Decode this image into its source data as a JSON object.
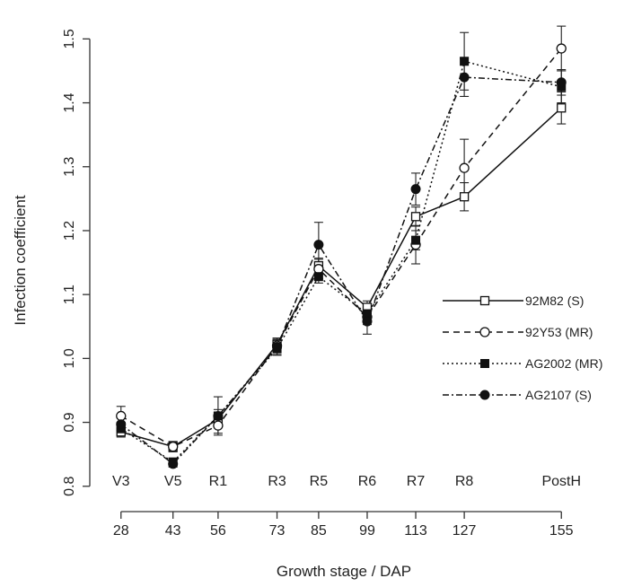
{
  "chart_data": {
    "type": "line",
    "xlabel": "Growth stage / DAP",
    "ylabel": "Infection coefficient",
    "x": [
      28,
      43,
      56,
      73,
      85,
      99,
      113,
      127,
      155
    ],
    "stages": [
      "V3",
      "V5",
      "R1",
      "R3",
      "R5",
      "R6",
      "R7",
      "R8",
      "PostH"
    ],
    "ylim": [
      0.78,
      1.53
    ],
    "yticks": [
      0.8,
      0.9,
      1.0,
      1.1,
      1.2,
      1.3,
      1.4,
      1.5
    ],
    "ytick_labels": [
      "0.8",
      "0.9",
      "1.0",
      "1.1",
      "1.2",
      "1.3",
      "1.4",
      "1.5"
    ],
    "legend_position": "center-right",
    "grid": false,
    "series": [
      {
        "name": "92M82 (S)",
        "line_style": "solid",
        "marker": "open-square",
        "values": [
          0.885,
          0.862,
          0.905,
          1.022,
          1.145,
          1.08,
          1.222,
          1.253,
          1.392
        ],
        "errors": [
          0.008,
          0.008,
          0.01,
          0.01,
          0.012,
          0.01,
          0.015,
          0.022,
          0.025
        ]
      },
      {
        "name": "92Y53 (MR)",
        "line_style": "dashed",
        "marker": "open-circle",
        "values": [
          0.91,
          0.862,
          0.895,
          1.02,
          1.14,
          1.065,
          1.178,
          1.298,
          1.485
        ],
        "errors": [
          0.015,
          0.008,
          0.012,
          0.01,
          0.015,
          0.012,
          0.03,
          0.045,
          0.035
        ]
      },
      {
        "name": "AG2002 (MR)",
        "line_style": "dotted",
        "marker": "filled-square",
        "values": [
          0.89,
          0.838,
          0.91,
          1.015,
          1.128,
          1.07,
          1.185,
          1.465,
          1.425
        ],
        "errors": [
          0.01,
          0.006,
          0.01,
          0.01,
          0.01,
          0.01,
          0.015,
          0.045,
          0.025
        ]
      },
      {
        "name": "AG2107 (S)",
        "line_style": "dashdot",
        "marker": "filled-circle",
        "values": [
          0.897,
          0.835,
          0.91,
          1.018,
          1.178,
          1.058,
          1.265,
          1.44,
          1.432
        ],
        "errors": [
          0.01,
          0.005,
          0.03,
          0.012,
          0.035,
          0.02,
          0.025,
          0.03,
          0.02
        ]
      }
    ]
  }
}
